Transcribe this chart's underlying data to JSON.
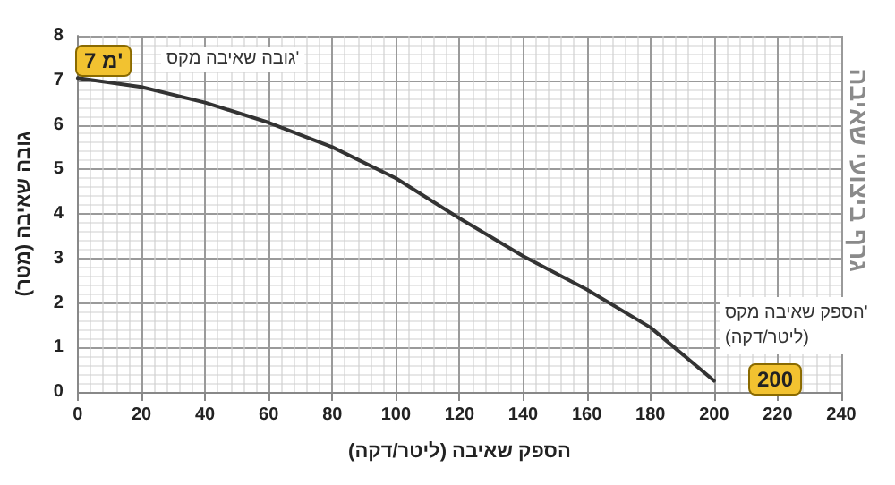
{
  "chart_data": {
    "type": "line",
    "title": "גרף ביצועי שאיבה",
    "xlabel": "הספק שאיבה (ליטר/דקה)",
    "ylabel": "גובה שאיבה (מטר)",
    "x": [
      0,
      20,
      40,
      60,
      80,
      100,
      120,
      140,
      160,
      180,
      200
    ],
    "series": [
      {
        "color": "#333333",
        "values": [
          7.05,
          6.85,
          6.5,
          6.05,
          5.5,
          4.8,
          3.9,
          3.05,
          2.3,
          1.45,
          0.25
        ]
      }
    ],
    "xlim": [
      0,
      240
    ],
    "xticks": [
      0,
      20,
      40,
      60,
      80,
      100,
      120,
      140,
      160,
      180,
      200,
      220,
      240
    ],
    "ylim": [
      0,
      8
    ],
    "yticks": [
      0,
      1,
      2,
      3,
      4,
      5,
      6,
      7,
      8
    ],
    "grid": true,
    "marker": "none",
    "line_style": "solid",
    "annotations": [
      "גובה שאיבה מקס'",
      "7 מ'",
      "הספק שאיבה מקס'\n(ליטר/דקה)",
      "200"
    ]
  }
}
